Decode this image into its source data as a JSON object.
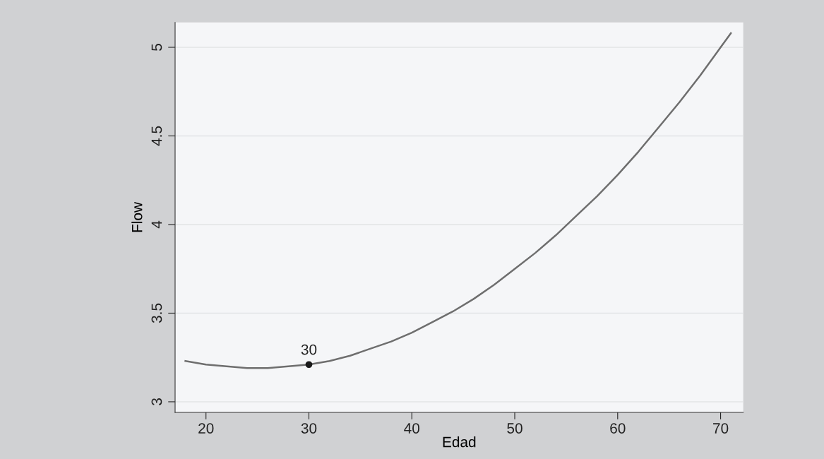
{
  "chart_data": {
    "type": "line",
    "xlabel": "Edad",
    "ylabel": "Flow",
    "xlim": [
      17,
      72.2
    ],
    "xticks": [
      20,
      30,
      40,
      50,
      60,
      70
    ],
    "ylim": [
      2.94,
      5.14
    ],
    "yticks": [
      3,
      3.5,
      4,
      4.5,
      5
    ],
    "grid": "y",
    "legend": false,
    "series": [
      {
        "color": "#6e6e6e",
        "marker": "none",
        "line_style": "solid",
        "x": [
          18,
          20,
          22,
          24,
          26,
          28,
          30,
          32,
          34,
          36,
          38,
          40,
          42,
          44,
          46,
          48,
          50,
          52,
          54,
          56,
          58,
          60,
          62,
          64,
          66,
          68,
          70,
          71
        ],
        "values": [
          3.23,
          3.21,
          3.2,
          3.19,
          3.19,
          3.2,
          3.21,
          3.23,
          3.26,
          3.3,
          3.34,
          3.39,
          3.45,
          3.51,
          3.58,
          3.66,
          3.75,
          3.84,
          3.94,
          4.05,
          4.16,
          4.28,
          4.41,
          4.55,
          4.69,
          4.84,
          5.0,
          5.08
        ]
      },
      {
        "type": "scatter",
        "color": "#1a1a1a",
        "marker": "circle",
        "x": [
          30
        ],
        "values": [
          3.21
        ]
      }
    ],
    "annotations": [
      {
        "text": "30",
        "x": 30,
        "y": 3.21
      }
    ]
  }
}
